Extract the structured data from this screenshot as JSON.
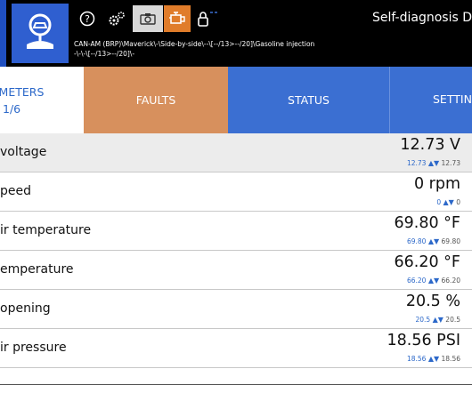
{
  "header": {
    "title": "Self-diagnosis D",
    "path_line1": "CAN-AM (BRP)\\Maverick\\-\\Side-by-side\\--\\[--/13>--/20]\\Gasoline injection",
    "path_line2": "-\\-\\-\\[--/13>--/20]\\-",
    "icons": [
      "help-icon",
      "settings-gears-icon",
      "camera-icon",
      "engine-icon",
      "lock-icon"
    ],
    "logo_icon": "car-diagnostic-icon"
  },
  "tabs": {
    "parameters_label": "AMETERS",
    "parameters_page": "1/6",
    "faults_label": "FAULTS",
    "status_label": "STATUS",
    "settings_label": "SETTIN"
  },
  "colors": {
    "header_bg": "#000000",
    "logo_bg": "#2f5fd0",
    "faults_tab": "#d7905d",
    "blue_tab": "#3b6fd2",
    "engine_icon_bg": "#e07c2a"
  },
  "rows": [
    {
      "name": "voltage",
      "value": "12.73 V",
      "min": "12.73",
      "arrows": "▲▼",
      "max": "12.73"
    },
    {
      "name": "peed",
      "value": "0 rpm",
      "min": "0",
      "arrows": "▲▼",
      "max": "0"
    },
    {
      "name": "ir temperature",
      "value": "69.80 °F",
      "min": "69.80",
      "arrows": "▲▼",
      "max": "69.80"
    },
    {
      "name": "emperature",
      "value": "66.20 °F",
      "min": "66.20",
      "arrows": "▲▼",
      "max": "66.20"
    },
    {
      "name": "opening",
      "value": "20.5 %",
      "min": "20.5",
      "arrows": "▲▼",
      "max": "20.5"
    },
    {
      "name": "ir pressure",
      "value": "18.56 PSI",
      "min": "18.56",
      "arrows": "▲▼",
      "max": "18.56"
    }
  ]
}
